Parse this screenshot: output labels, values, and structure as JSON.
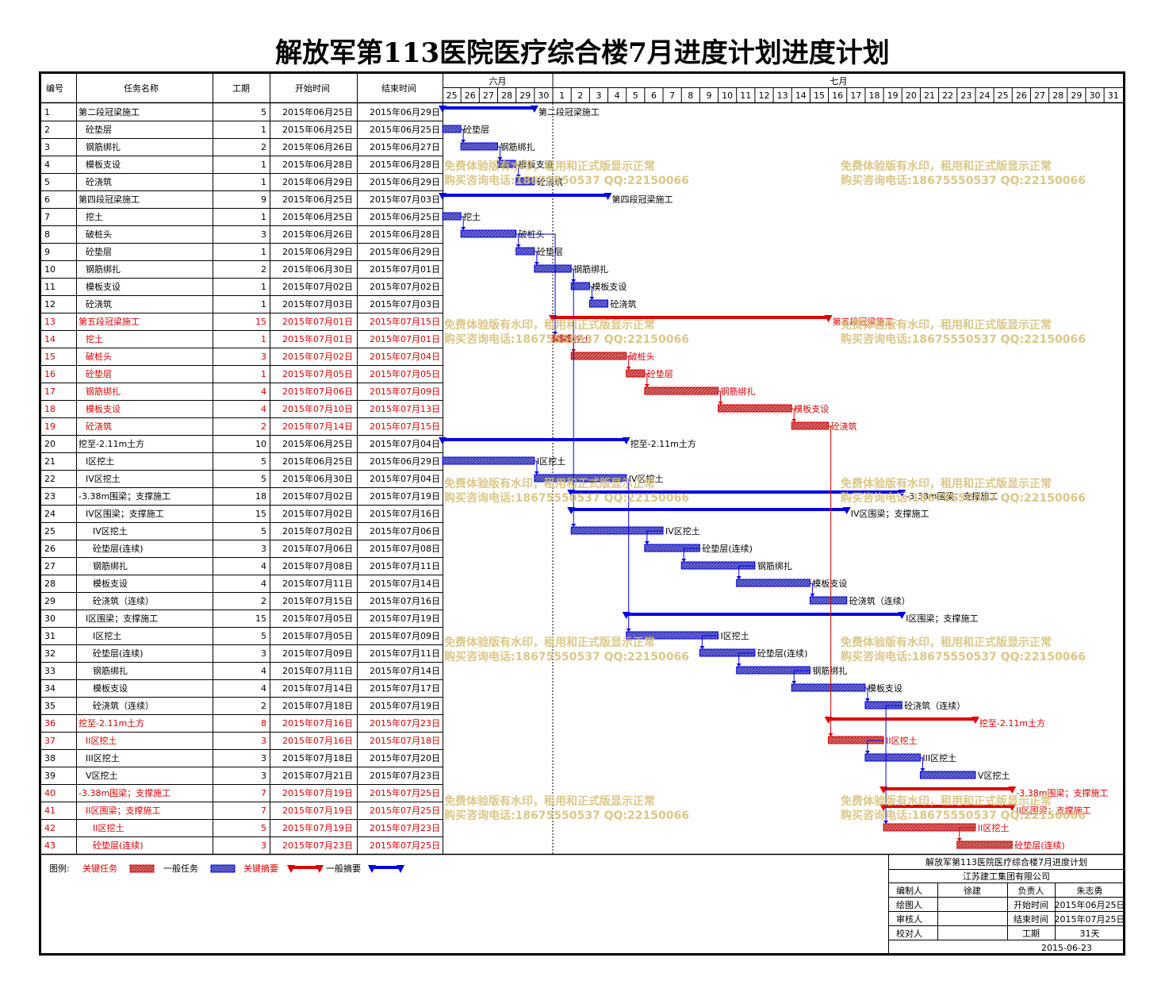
{
  "title": "解放军第113医院医疗综合楼7月进度计划进度计划",
  "headers": {
    "id": "编号",
    "name": "任务名称",
    "dur": "工期",
    "start": "开始时间",
    "end": "结束时间"
  },
  "months": [
    {
      "label": "六月"
    },
    {
      "label": "七月"
    }
  ],
  "days": [
    "25",
    "26",
    "27",
    "28",
    "29",
    "30",
    "1",
    "2",
    "3",
    "4",
    "5",
    "6",
    "7",
    "8",
    "9",
    "10",
    "11",
    "12",
    "13",
    "14",
    "15",
    "16",
    "17",
    "18",
    "19",
    "20",
    "21",
    "22",
    "23",
    "24",
    "25",
    "26",
    "27",
    "28",
    "29",
    "30",
    "31"
  ],
  "watermark": {
    "line1": "免费体验版有水印，租用和正式版显示正常",
    "line2": "购买咨询电话:18675550537 QQ:22150066"
  },
  "legend": {
    "label": "图例:",
    "critical_task": "关键任务",
    "normal_task": "一般任务",
    "critical_summary": "关键摘要",
    "normal_summary": "一般摘要"
  },
  "colors": {
    "critical": "#e00000",
    "normal": "#0000e6",
    "bar_normal": "#4d4dc8",
    "bar_critical": "#d84040"
  },
  "info_box": {
    "title": "解放军第113医院医疗综合楼7月进度计划",
    "company": "江苏建工集团有限公司",
    "rows": [
      [
        "编制人",
        "徐建",
        "负责人",
        "朱志勇"
      ],
      [
        "绘图人",
        "",
        "开始时间",
        "2015年06月25日"
      ],
      [
        "审核人",
        "",
        "结束时间",
        "2015年07月25日"
      ],
      [
        "校对人",
        "",
        "工期",
        "31天"
      ]
    ],
    "date": "2015-06-23"
  },
  "chart_data": {
    "type": "gantt",
    "x_start": "2015-06-25",
    "x_end": "2015-07-31",
    "tasks": [
      {
        "id": "1",
        "name": "第二段冠梁施工",
        "indent": 0,
        "dur": 5,
        "start": "2015年06月25日",
        "end": "2015年06月29日",
        "s": 0,
        "e": 5,
        "kind": "summary",
        "critical": false
      },
      {
        "id": "2",
        "name": "砼垫层",
        "indent": 1,
        "dur": 1,
        "start": "2015年06月25日",
        "end": "2015年06月25日",
        "s": 0,
        "e": 1,
        "kind": "task",
        "critical": false
      },
      {
        "id": "3",
        "name": "钢筋绑扎",
        "indent": 1,
        "dur": 2,
        "start": "2015年06月26日",
        "end": "2015年06月27日",
        "s": 1,
        "e": 3,
        "kind": "task",
        "critical": false
      },
      {
        "id": "4",
        "name": "模板支设",
        "indent": 1,
        "dur": 1,
        "start": "2015年06月28日",
        "end": "2015年06月28日",
        "s": 3,
        "e": 4,
        "kind": "task",
        "critical": false
      },
      {
        "id": "5",
        "name": "砼浇筑",
        "indent": 1,
        "dur": 1,
        "start": "2015年06月29日",
        "end": "2015年06月29日",
        "s": 4,
        "e": 5,
        "kind": "task",
        "critical": false
      },
      {
        "id": "6",
        "name": "第四段冠梁施工",
        "indent": 0,
        "dur": 9,
        "start": "2015年06月25日",
        "end": "2015年07月03日",
        "s": 0,
        "e": 9,
        "kind": "summary",
        "critical": false
      },
      {
        "id": "7",
        "name": "挖土",
        "indent": 1,
        "dur": 1,
        "start": "2015年06月25日",
        "end": "2015年06月25日",
        "s": 0,
        "e": 1,
        "kind": "task",
        "critical": false
      },
      {
        "id": "8",
        "name": "破桩头",
        "indent": 1,
        "dur": 3,
        "start": "2015年06月26日",
        "end": "2015年06月28日",
        "s": 1,
        "e": 4,
        "kind": "task",
        "critical": false
      },
      {
        "id": "9",
        "name": "砼垫层",
        "indent": 1,
        "dur": 1,
        "start": "2015年06月29日",
        "end": "2015年06月29日",
        "s": 4,
        "e": 5,
        "kind": "task",
        "critical": false
      },
      {
        "id": "10",
        "name": "钢筋绑扎",
        "indent": 1,
        "dur": 2,
        "start": "2015年06月30日",
        "end": "2015年07月01日",
        "s": 5,
        "e": 7,
        "kind": "task",
        "critical": false
      },
      {
        "id": "11",
        "name": "模板支设",
        "indent": 1,
        "dur": 1,
        "start": "2015年07月02日",
        "end": "2015年07月02日",
        "s": 7,
        "e": 8,
        "kind": "task",
        "critical": false
      },
      {
        "id": "12",
        "name": "砼浇筑",
        "indent": 1,
        "dur": 1,
        "start": "2015年07月03日",
        "end": "2015年07月03日",
        "s": 8,
        "e": 9,
        "kind": "task",
        "critical": false
      },
      {
        "id": "13",
        "name": "第五段冠梁施工",
        "indent": 0,
        "dur": 15,
        "start": "2015年07月01日",
        "end": "2015年07月15日",
        "s": 6,
        "e": 21,
        "kind": "summary",
        "critical": true
      },
      {
        "id": "14",
        "name": "挖土",
        "indent": 1,
        "dur": 1,
        "start": "2015年07月01日",
        "end": "2015年07月01日",
        "s": 6,
        "e": 7,
        "kind": "task",
        "critical": true
      },
      {
        "id": "15",
        "name": "破桩头",
        "indent": 1,
        "dur": 3,
        "start": "2015年07月02日",
        "end": "2015年07月04日",
        "s": 7,
        "e": 10,
        "kind": "task",
        "critical": true
      },
      {
        "id": "16",
        "name": "砼垫层",
        "indent": 1,
        "dur": 1,
        "start": "2015年07月05日",
        "end": "2015年07月05日",
        "s": 10,
        "e": 11,
        "kind": "task",
        "critical": true
      },
      {
        "id": "17",
        "name": "钢筋绑扎",
        "indent": 1,
        "dur": 4,
        "start": "2015年07月06日",
        "end": "2015年07月09日",
        "s": 11,
        "e": 15,
        "kind": "task",
        "critical": true
      },
      {
        "id": "18",
        "name": "模板支设",
        "indent": 1,
        "dur": 4,
        "start": "2015年07月10日",
        "end": "2015年07月13日",
        "s": 15,
        "e": 19,
        "kind": "task",
        "critical": true
      },
      {
        "id": "19",
        "name": "砼浇筑",
        "indent": 1,
        "dur": 2,
        "start": "2015年07月14日",
        "end": "2015年07月15日",
        "s": 19,
        "e": 21,
        "kind": "task",
        "critical": true
      },
      {
        "id": "20",
        "name": "挖至-2.11m土方",
        "indent": 0,
        "dur": 10,
        "start": "2015年06月25日",
        "end": "2015年07月04日",
        "s": 0,
        "e": 10,
        "kind": "summary",
        "critical": false
      },
      {
        "id": "21",
        "name": "I区挖土",
        "indent": 1,
        "dur": 5,
        "start": "2015年06月25日",
        "end": "2015年06月29日",
        "s": 0,
        "e": 5,
        "kind": "task",
        "critical": false
      },
      {
        "id": "22",
        "name": "IV区挖土",
        "indent": 1,
        "dur": 5,
        "start": "2015年06月30日",
        "end": "2015年07月04日",
        "s": 5,
        "e": 10,
        "kind": "task",
        "critical": false
      },
      {
        "id": "23",
        "name": "-3.38m围梁；支撑施工",
        "indent": 0,
        "dur": 18,
        "start": "2015年07月02日",
        "end": "2015年07月19日",
        "s": 7,
        "e": 25,
        "kind": "summary",
        "critical": false
      },
      {
        "id": "24",
        "name": "IV区围梁；支撑施工",
        "indent": 1,
        "dur": 15,
        "start": "2015年07月02日",
        "end": "2015年07月16日",
        "s": 7,
        "e": 22,
        "kind": "summary",
        "critical": false
      },
      {
        "id": "25",
        "name": "IV区挖土",
        "indent": 2,
        "dur": 5,
        "start": "2015年07月02日",
        "end": "2015年07月06日",
        "s": 7,
        "e": 12,
        "kind": "task",
        "critical": false
      },
      {
        "id": "26",
        "name": "砼垫层(连续)",
        "indent": 2,
        "dur": 3,
        "start": "2015年07月06日",
        "end": "2015年07月08日",
        "s": 11,
        "e": 14,
        "kind": "task",
        "critical": false
      },
      {
        "id": "27",
        "name": "钢筋绑扎",
        "indent": 2,
        "dur": 4,
        "start": "2015年07月08日",
        "end": "2015年07月11日",
        "s": 13,
        "e": 17,
        "kind": "task",
        "critical": false
      },
      {
        "id": "28",
        "name": "模板支设",
        "indent": 2,
        "dur": 4,
        "start": "2015年07月11日",
        "end": "2015年07月14日",
        "s": 16,
        "e": 20,
        "kind": "task",
        "critical": false
      },
      {
        "id": "29",
        "name": "砼浇筑（连续）",
        "indent": 2,
        "dur": 2,
        "start": "2015年07月15日",
        "end": "2015年07月16日",
        "s": 20,
        "e": 22,
        "kind": "task",
        "critical": false
      },
      {
        "id": "30",
        "name": "I区围梁；支撑施工",
        "indent": 1,
        "dur": 15,
        "start": "2015年07月05日",
        "end": "2015年07月19日",
        "s": 10,
        "e": 25,
        "kind": "summary",
        "critical": false
      },
      {
        "id": "31",
        "name": "I区挖土",
        "indent": 2,
        "dur": 5,
        "start": "2015年07月05日",
        "end": "2015年07月09日",
        "s": 10,
        "e": 15,
        "kind": "task",
        "critical": false
      },
      {
        "id": "32",
        "name": "砼垫层(连续)",
        "indent": 2,
        "dur": 3,
        "start": "2015年07月09日",
        "end": "2015年07月11日",
        "s": 14,
        "e": 17,
        "kind": "task",
        "critical": false
      },
      {
        "id": "33",
        "name": "钢筋绑扎",
        "indent": 2,
        "dur": 4,
        "start": "2015年07月11日",
        "end": "2015年07月14日",
        "s": 16,
        "e": 20,
        "kind": "task",
        "critical": false
      },
      {
        "id": "34",
        "name": "模板支设",
        "indent": 2,
        "dur": 4,
        "start": "2015年07月14日",
        "end": "2015年07月17日",
        "s": 19,
        "e": 23,
        "kind": "task",
        "critical": false
      },
      {
        "id": "35",
        "name": "砼浇筑（连续）",
        "indent": 2,
        "dur": 2,
        "start": "2015年07月18日",
        "end": "2015年07月19日",
        "s": 23,
        "e": 25,
        "kind": "task",
        "critical": false
      },
      {
        "id": "36",
        "name": "挖至-2.11m土方",
        "indent": 0,
        "dur": 8,
        "start": "2015年07月16日",
        "end": "2015年07月23日",
        "s": 21,
        "e": 29,
        "kind": "summary",
        "critical": true
      },
      {
        "id": "37",
        "name": "II区挖土",
        "indent": 1,
        "dur": 3,
        "start": "2015年07月16日",
        "end": "2015年07月18日",
        "s": 21,
        "e": 24,
        "kind": "task",
        "critical": true
      },
      {
        "id": "38",
        "name": "III区挖土",
        "indent": 1,
        "dur": 3,
        "start": "2015年07月18日",
        "end": "2015年07月20日",
        "s": 23,
        "e": 26,
        "kind": "task",
        "critical": false
      },
      {
        "id": "39",
        "name": "V区挖土",
        "indent": 1,
        "dur": 3,
        "start": "2015年07月21日",
        "end": "2015年07月23日",
        "s": 26,
        "e": 29,
        "kind": "task",
        "critical": false
      },
      {
        "id": "40",
        "name": "-3.38m围梁；支撑施工",
        "indent": 0,
        "dur": 7,
        "start": "2015年07月19日",
        "end": "2015年07月25日",
        "s": 24,
        "e": 31,
        "kind": "summary",
        "critical": true
      },
      {
        "id": "41",
        "name": "II区围梁；支撑施工",
        "indent": 1,
        "dur": 7,
        "start": "2015年07月19日",
        "end": "2015年07月25日",
        "s": 24,
        "e": 31,
        "kind": "summary",
        "critical": true
      },
      {
        "id": "42",
        "name": "II区挖土",
        "indent": 2,
        "dur": 5,
        "start": "2015年07月19日",
        "end": "2015年07月23日",
        "s": 24,
        "e": 29,
        "kind": "task",
        "critical": true
      },
      {
        "id": "43",
        "name": "砼垫层(连续)",
        "indent": 2,
        "dur": 3,
        "start": "2015年07月23日",
        "end": "2015年07月25日",
        "s": 28,
        "e": 31,
        "kind": "task",
        "critical": true
      }
    ]
  }
}
